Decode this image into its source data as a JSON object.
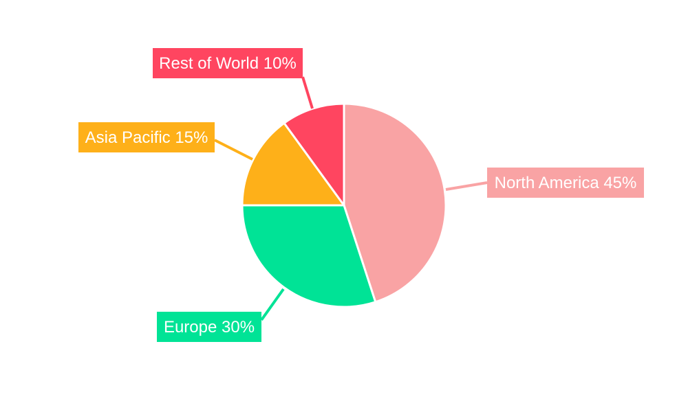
{
  "chart_data": {
    "type": "pie",
    "title": "",
    "start_angle": "top",
    "direction": "clockwise",
    "slices": [
      {
        "label": "North America",
        "value": 45,
        "display": "North America 45%",
        "color": "#f9a3a4"
      },
      {
        "label": "Europe",
        "value": 30,
        "display": "Europe 30%",
        "color": "#00e396"
      },
      {
        "label": "Asia Pacific",
        "value": 15,
        "display": "Asia Pacific 15%",
        "color": "#feb019"
      },
      {
        "label": "Rest of World",
        "value": 10,
        "display": "Rest of World 10%",
        "color": "#ff4560"
      }
    ],
    "legend": "none"
  }
}
